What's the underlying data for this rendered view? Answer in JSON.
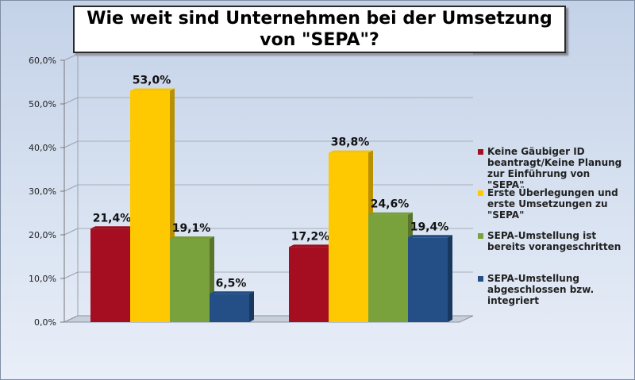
{
  "title": "Wie weit sind Unternehmen bei der Umsetzung von \"SEPA\"?",
  "chart_data": {
    "type": "bar",
    "title": "Wie weit sind Unternehmen bei der Umsetzung von \"SEPA\"?",
    "categories": [
      "",
      ""
    ],
    "ylim": [
      0,
      60
    ],
    "yticks": [
      "0,0%",
      "10,0%",
      "20,0%",
      "30,0%",
      "40,0%",
      "50,0%",
      "60,0%"
    ],
    "grid": true,
    "legend_position": "right",
    "series": [
      {
        "name": "Keine Gäubiger ID beantragt/Keine Planung zur Einführung von \"SEPA\"",
        "color": "#a50d20",
        "values": [
          21.4,
          17.2
        ],
        "labels": [
          "21,4%",
          "17,2%"
        ]
      },
      {
        "name": "Erste Überlegungen und erste Umsetzungen zu \"SEPA\"",
        "color": "#fec900",
        "values": [
          53.0,
          38.8
        ],
        "labels": [
          "53,0%",
          "38,8%"
        ]
      },
      {
        "name": "SEPA-Umstellung ist bereits vorangeschritten",
        "color": "#7aa23c",
        "values": [
          19.1,
          24.6
        ],
        "labels": [
          "19,1%",
          "24,6%"
        ]
      },
      {
        "name": "SEPA-Umstellung abgeschlossen bzw. integriert",
        "color": "#234e86",
        "values": [
          6.5,
          19.4
        ],
        "labels": [
          "6,5%",
          "19,4%"
        ]
      }
    ]
  }
}
